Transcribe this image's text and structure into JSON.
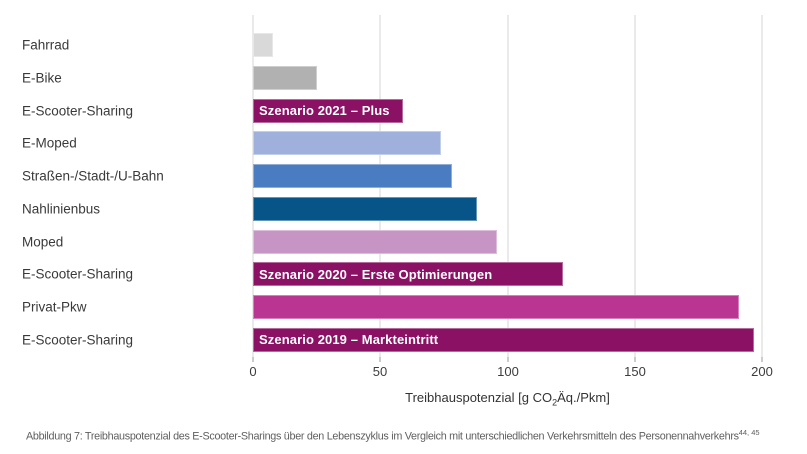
{
  "chart_data": {
    "type": "bar",
    "orientation": "horizontal",
    "title": "",
    "xlabel": "Treibhauspotenzial [g CO2Äq./Pkm]",
    "xlabel_pre": "Treibhauspotenzial [g CO",
    "xlabel_sub": "2",
    "xlabel_post": "Äq./Pkm]",
    "xlim": [
      0,
      200
    ],
    "xticks": [
      0,
      50,
      100,
      150,
      200
    ],
    "grid": true,
    "gridline_color": "#eaeaea",
    "legend_position": "none",
    "categories": [
      "Fahrrad",
      "E-Bike",
      "E-Scooter-Sharing",
      "E-Moped",
      "Straßen-/Stadt-/U-Bahn",
      "Nahlinienbus",
      "Moped",
      "E-Scooter-Sharing",
      "Privat-Pkw",
      "E-Scooter-Sharing"
    ],
    "values": [
      8,
      25,
      59,
      74,
      78,
      88,
      96,
      122,
      191,
      197
    ],
    "bar_labels": [
      "",
      "",
      "Szenario 2021 – Plus",
      "",
      "",
      "",
      "",
      "Szenario 2020 – Erste Optimierungen",
      "",
      "Szenario 2019 – Markteintritt"
    ],
    "bar_colors": [
      "#d9d9d9",
      "#b1b1b1",
      "#8a1164",
      "#9fb0dc",
      "#4a7cc1",
      "#075489",
      "#c795c4",
      "#8a1164",
      "#ba3492",
      "#8a1164"
    ]
  },
  "axis": {
    "xlabel_pre": "Treibhauspotenzial [g CO",
    "xlabel_sub": "2",
    "xlabel_post": "Äq./Pkm]"
  },
  "figure": {
    "caption_text": "Abbildung 7: Treibhauspotenzial des E-Scooter-Sharings über den Lebenszyklus im Vergleich mit unterschiedlichen Verkehrsmitteln des Personennahverkehrs",
    "caption_superscript": "44, 45"
  }
}
